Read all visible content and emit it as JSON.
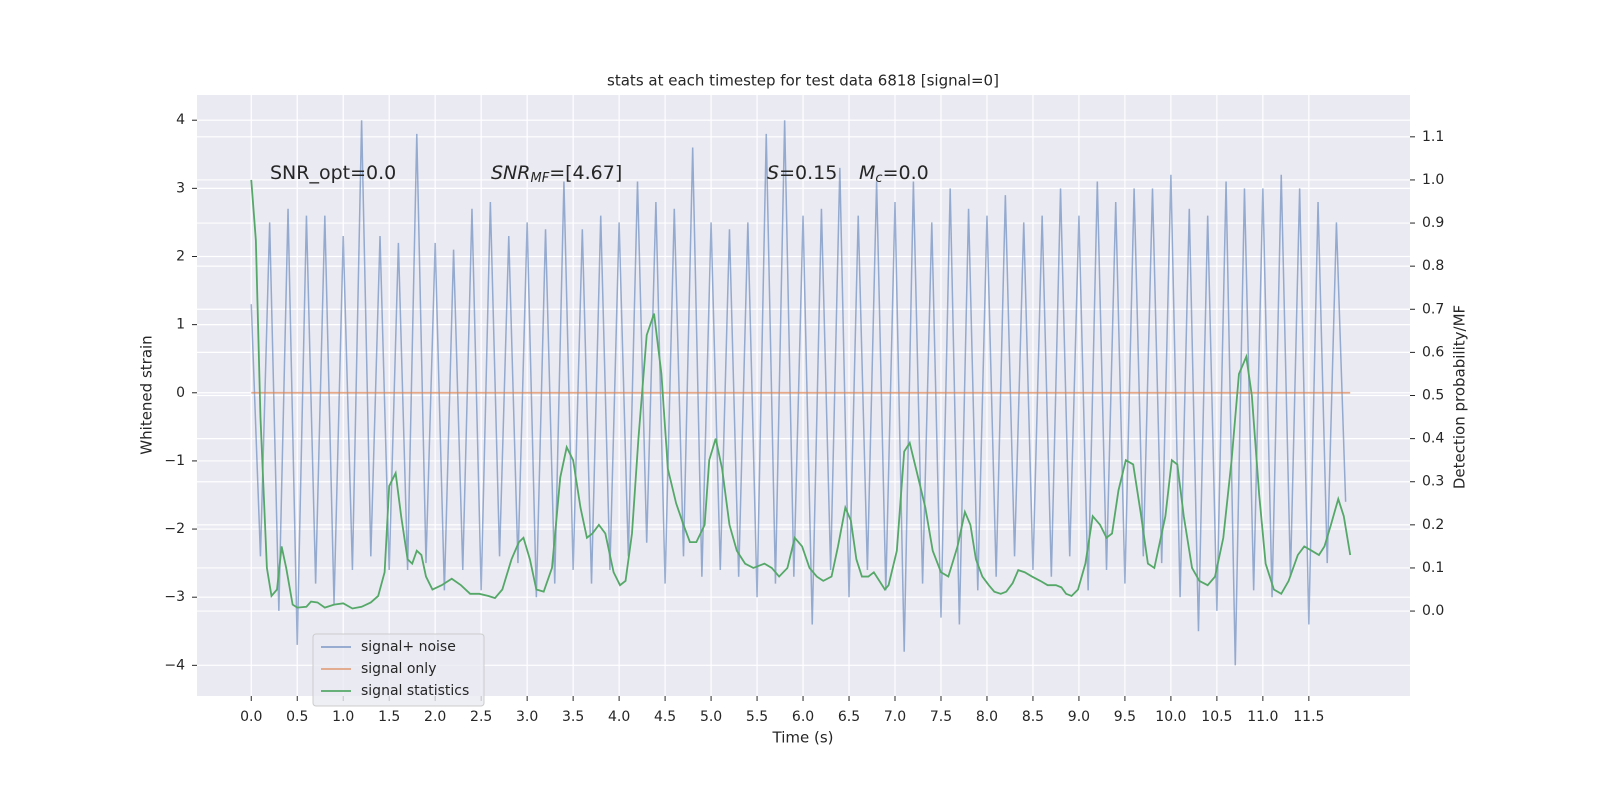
{
  "chart_data": {
    "type": "line",
    "title": "stats at each timestep for test data 6818 [signal=0]",
    "xlabel": "Time (s)",
    "ylabel": "Whitened strain",
    "y2label": "Detection probability/MF",
    "grid": true,
    "legend": "lower left",
    "xlim": [
      -0.59,
      12.6
    ],
    "ylim": [
      -4.45,
      4.37
    ],
    "y2lim": [
      -0.197,
      1.197
    ],
    "xticks": [
      {
        "value": 0,
        "label": "0.0"
      },
      0.5,
      {
        "value": 1,
        "label": "1.0"
      },
      1.5,
      {
        "value": 2,
        "label": "2.0"
      },
      2.5,
      {
        "value": 3,
        "label": "3.0"
      },
      3.5,
      {
        "value": 4,
        "label": "4.0"
      },
      4.5,
      {
        "value": 5,
        "label": "5.0"
      },
      5.5,
      {
        "value": 6,
        "label": "6.0"
      },
      6.5,
      {
        "value": 7,
        "label": "7.0"
      },
      7.5,
      {
        "value": 8,
        "label": "8.0"
      },
      8.5,
      {
        "value": 9,
        "label": "9.0"
      },
      9.5,
      {
        "value": 10,
        "label": "10.0"
      },
      10.5,
      {
        "value": 11,
        "label": "11.0"
      },
      11.5
    ],
    "yticks": [
      {
        "value": -4,
        "label": "−4"
      },
      {
        "value": -3,
        "label": "−3"
      },
      {
        "value": -2,
        "label": "−2"
      },
      {
        "value": -1,
        "label": "−1"
      },
      0,
      1,
      2,
      3,
      4
    ],
    "y2ticks": [
      {
        "value": 0,
        "label": "0.0"
      },
      0.1,
      0.2,
      0.3,
      0.4,
      0.5,
      0.6,
      0.7,
      0.8,
      0.9,
      {
        "value": 1,
        "label": "1.0"
      },
      1.1
    ],
    "annotations": [
      {
        "text": "SNR_opt=0.0"
      },
      {
        "base": "SNR",
        "sub": "MF",
        "text": "=[4.67]"
      },
      {
        "base": "S",
        "text": "=0.15"
      },
      {
        "base": "M",
        "sub": "c",
        "text": "=0.0"
      }
    ],
    "series": [
      {
        "name": "signal+ noise",
        "color": "#4c72b0",
        "x": [
          0.0,
          0.1,
          0.2,
          0.3,
          0.4,
          0.5,
          0.6,
          0.7,
          0.8,
          0.9,
          1.0,
          1.1,
          1.2,
          1.3,
          1.4,
          1.5,
          1.6,
          1.7,
          1.8,
          1.9,
          2.0,
          2.1,
          2.2,
          2.3,
          2.4,
          2.5,
          2.6,
          2.7,
          2.8,
          2.9,
          3.0,
          3.1,
          3.2,
          3.3,
          3.4,
          3.5,
          3.6,
          3.7,
          3.8,
          3.9,
          4.0,
          4.1,
          4.2,
          4.3,
          4.4,
          4.5,
          4.6,
          4.7,
          4.8,
          4.9,
          5.0,
          5.1,
          5.2,
          5.3,
          5.4,
          5.5,
          5.6,
          5.7,
          5.8,
          5.9,
          6.0,
          6.1,
          6.2,
          6.3,
          6.4,
          6.5,
          6.6,
          6.7,
          6.8,
          6.9,
          7.0,
          7.1,
          7.2,
          7.3,
          7.4,
          7.5,
          7.6,
          7.7,
          7.8,
          7.9,
          8.0,
          8.1,
          8.2,
          8.3,
          8.4,
          8.5,
          8.6,
          8.7,
          8.8,
          8.9,
          9.0,
          9.1,
          9.2,
          9.3,
          9.4,
          9.5,
          9.6,
          9.7,
          9.8,
          9.9,
          10.0,
          10.1,
          10.2,
          10.3,
          10.4,
          10.5,
          10.6,
          10.7,
          10.8,
          10.9,
          11.0,
          11.1,
          11.2,
          11.3,
          11.4,
          11.5,
          11.6,
          11.7,
          11.8,
          11.9
        ],
        "values": [
          1.3,
          -2.4,
          2.5,
          -3.2,
          2.7,
          -3.7,
          2.6,
          -2.8,
          2.6,
          -3.1,
          2.3,
          -2.6,
          4.0,
          -2.4,
          2.3,
          -2.6,
          2.2,
          -2.6,
          3.8,
          -2.5,
          2.2,
          -2.9,
          2.1,
          -2.6,
          2.7,
          -2.9,
          2.8,
          -2.4,
          2.3,
          -2.5,
          2.5,
          -3.0,
          2.4,
          -2.8,
          3.1,
          -2.6,
          2.4,
          -2.8,
          2.6,
          -2.6,
          2.5,
          -2.4,
          3.1,
          -2.2,
          2.8,
          -2.8,
          2.7,
          -2.4,
          3.6,
          -2.7,
          2.5,
          -2.6,
          2.4,
          -2.7,
          2.5,
          -3.0,
          3.8,
          -2.8,
          4.0,
          -2.7,
          2.6,
          -3.4,
          2.7,
          -2.6,
          3.3,
          -3.0,
          2.6,
          -2.6,
          3.1,
          -2.9,
          2.8,
          -3.8,
          3.1,
          -2.8,
          2.5,
          -3.3,
          3.0,
          -3.4,
          2.7,
          -2.9,
          2.6,
          -2.7,
          2.9,
          -2.4,
          2.5,
          -2.6,
          2.6,
          -2.7,
          3.0,
          -2.4,
          2.6,
          -2.9,
          3.1,
          -2.6,
          2.8,
          -2.8,
          3.0,
          -2.4,
          3.0,
          -2.5,
          3.2,
          -3.0,
          2.7,
          -3.5,
          2.6,
          -3.2,
          3.1,
          -4.0,
          3.0,
          -2.9,
          3.0,
          -3.0,
          3.2,
          -2.7,
          3.0,
          -3.4,
          2.8,
          -2.5,
          2.5,
          -1.6
        ]
      },
      {
        "name": "signal only",
        "color": "#dd8452",
        "x": [
          0.0,
          11.95
        ],
        "values": [
          0,
          0
        ]
      },
      {
        "name": "signal statistics",
        "color": "#55a868",
        "axis": "y2",
        "x": [
          0.0,
          0.05,
          0.1,
          0.17,
          0.22,
          0.28,
          0.33,
          0.38,
          0.45,
          0.5,
          0.6,
          0.65,
          0.72,
          0.8,
          0.9,
          1.0,
          1.1,
          1.2,
          1.3,
          1.38,
          1.45,
          1.5,
          1.57,
          1.63,
          1.7,
          1.75,
          1.8,
          1.85,
          1.9,
          1.97,
          2.07,
          2.18,
          2.28,
          2.38,
          2.48,
          2.58,
          2.65,
          2.73,
          2.83,
          2.91,
          2.96,
          3.03,
          3.1,
          3.18,
          3.27,
          3.36,
          3.43,
          3.5,
          3.58,
          3.65,
          3.71,
          3.78,
          3.85,
          3.94,
          4.01,
          4.07,
          4.14,
          4.21,
          4.3,
          4.38,
          4.46,
          4.53,
          4.62,
          4.7,
          4.77,
          4.84,
          4.93,
          4.98,
          5.05,
          5.12,
          5.2,
          5.28,
          5.37,
          5.46,
          5.58,
          5.66,
          5.74,
          5.83,
          5.91,
          5.99,
          6.07,
          6.15,
          6.22,
          6.31,
          6.38,
          6.46,
          6.52,
          6.58,
          6.64,
          6.71,
          6.77,
          6.83,
          6.89,
          6.93,
          7.02,
          7.1,
          7.16,
          7.24,
          7.33,
          7.41,
          7.5,
          7.58,
          7.68,
          7.76,
          7.82,
          7.88,
          7.95,
          8.02,
          8.08,
          8.15,
          8.21,
          8.28,
          8.34,
          8.41,
          8.49,
          8.58,
          8.66,
          8.75,
          8.81,
          8.86,
          8.92,
          8.99,
          9.07,
          9.15,
          9.23,
          9.3,
          9.36,
          9.43,
          9.51,
          9.59,
          9.67,
          9.75,
          9.82,
          9.94,
          10.01,
          10.07,
          10.14,
          10.23,
          10.31,
          10.4,
          10.48,
          10.57,
          10.66,
          10.74,
          10.82,
          10.88,
          10.96,
          11.03,
          11.12,
          11.2,
          11.28,
          11.38,
          11.45,
          11.53,
          11.61,
          11.67,
          11.74,
          11.82,
          11.88,
          11.95
        ],
        "values": [
          1.0,
          0.86,
          0.45,
          0.1,
          0.035,
          0.05,
          0.15,
          0.1,
          0.015,
          0.008,
          0.01,
          0.022,
          0.02,
          0.008,
          0.015,
          0.018,
          0.006,
          0.01,
          0.02,
          0.035,
          0.09,
          0.29,
          0.32,
          0.22,
          0.12,
          0.11,
          0.14,
          0.13,
          0.08,
          0.05,
          0.06,
          0.075,
          0.06,
          0.04,
          0.04,
          0.035,
          0.03,
          0.05,
          0.12,
          0.16,
          0.17,
          0.12,
          0.05,
          0.045,
          0.1,
          0.31,
          0.38,
          0.35,
          0.24,
          0.17,
          0.18,
          0.2,
          0.18,
          0.09,
          0.06,
          0.07,
          0.18,
          0.4,
          0.64,
          0.69,
          0.55,
          0.33,
          0.25,
          0.2,
          0.16,
          0.16,
          0.2,
          0.35,
          0.4,
          0.33,
          0.2,
          0.14,
          0.11,
          0.1,
          0.11,
          0.1,
          0.08,
          0.1,
          0.17,
          0.15,
          0.1,
          0.08,
          0.07,
          0.08,
          0.15,
          0.24,
          0.21,
          0.12,
          0.08,
          0.08,
          0.09,
          0.07,
          0.05,
          0.06,
          0.14,
          0.37,
          0.39,
          0.32,
          0.24,
          0.14,
          0.09,
          0.08,
          0.15,
          0.23,
          0.2,
          0.12,
          0.08,
          0.06,
          0.045,
          0.04,
          0.045,
          0.065,
          0.095,
          0.09,
          0.08,
          0.07,
          0.06,
          0.06,
          0.055,
          0.04,
          0.035,
          0.05,
          0.11,
          0.22,
          0.2,
          0.17,
          0.18,
          0.28,
          0.35,
          0.34,
          0.23,
          0.11,
          0.1,
          0.22,
          0.35,
          0.34,
          0.22,
          0.1,
          0.07,
          0.06,
          0.08,
          0.17,
          0.35,
          0.55,
          0.59,
          0.5,
          0.27,
          0.11,
          0.05,
          0.04,
          0.07,
          0.13,
          0.15,
          0.14,
          0.13,
          0.15,
          0.2,
          0.26,
          0.22,
          0.13
        ]
      }
    ]
  }
}
